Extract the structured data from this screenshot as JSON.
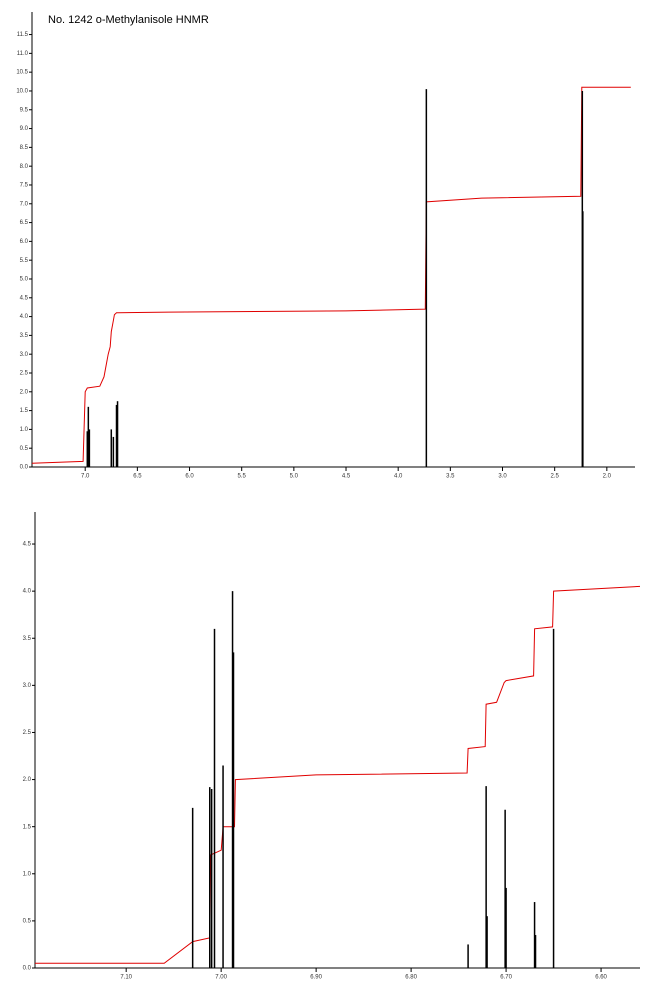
{
  "chart_data": [
    {
      "type": "spectrum",
      "title": "No. 1242 o-Methylanisole HNMR",
      "xlim": [
        7.51,
        1.73
      ],
      "xticks": [
        {
          "value": 7,
          "label": "7.0"
        },
        {
          "value": 6.5,
          "label": "6.5"
        },
        {
          "value": 6,
          "label": "6.0"
        },
        {
          "value": 5.5,
          "label": "5.5"
        },
        {
          "value": 5,
          "label": "5.0"
        },
        {
          "value": 4.5,
          "label": "4.5"
        },
        {
          "value": 4,
          "label": "4.0"
        },
        {
          "value": 3.5,
          "label": "3.5"
        },
        {
          "value": 3,
          "label": "3.0"
        },
        {
          "value": 2.5,
          "label": "2.5"
        },
        {
          "value": 2,
          "label": "2.0"
        }
      ],
      "ylim": [
        0,
        12.1
      ],
      "yticks": [
        {
          "value": 0,
          "label": "0.0"
        },
        0.5,
        {
          "value": 1,
          "label": "1.0"
        },
        1.5,
        {
          "value": 2,
          "label": "2.0"
        },
        2.5,
        {
          "value": 3,
          "label": "3.0"
        },
        3.5,
        {
          "value": 4,
          "label": "4.0"
        },
        4.5,
        {
          "value": 5,
          "label": "5.0"
        },
        5.5,
        {
          "value": 6,
          "label": "6.0"
        },
        6.5,
        {
          "value": 7,
          "label": "7.0"
        },
        7.5,
        {
          "value": 8,
          "label": "8.0"
        },
        8.5,
        {
          "value": 9,
          "label": "9.0"
        },
        9.5,
        {
          "value": 10,
          "label": "10.0"
        },
        10.5,
        {
          "value": 11,
          "label": "11.0"
        },
        11.5
      ],
      "peaks": {
        "color": "#000000",
        "x": [
          6.98,
          6.97,
          6.96,
          6.75,
          6.73,
          6.7,
          6.69,
          3.73,
          2.235,
          2.23
        ],
        "values": [
          0.95,
          1.6,
          1.0,
          1.0,
          0.8,
          1.65,
          1.75,
          10.05,
          10.0,
          6.8
        ]
      },
      "integral": {
        "color": "#e00000",
        "x": [
          7.51,
          7.02,
          7.0,
          6.98,
          6.86,
          6.82,
          6.8,
          6.78,
          6.76,
          6.75,
          6.73,
          6.72,
          6.7,
          6.68,
          6.2,
          4.5,
          3.74,
          3.73,
          3.2,
          2.25,
          2.24,
          1.77
        ],
        "values": [
          0.1,
          0.15,
          2.0,
          2.1,
          2.15,
          2.4,
          2.7,
          3.0,
          3.2,
          3.6,
          3.9,
          4.05,
          4.1,
          4.1,
          4.12,
          4.15,
          4.2,
          7.05,
          7.15,
          7.2,
          10.1,
          10.1
        ]
      }
    },
    {
      "type": "spectrum",
      "xlim": [
        7.196,
        6.559
      ],
      "xticks": [
        {
          "value": 7.1,
          "label": "7.10"
        },
        {
          "value": 7,
          "label": "7.00"
        },
        {
          "value": 6.9,
          "label": "6.90"
        },
        {
          "value": 6.8,
          "label": "6.80"
        },
        {
          "value": 6.7,
          "label": "6.70"
        },
        {
          "value": 6.6,
          "label": "6.60"
        }
      ],
      "ylim": [
        0,
        4.84
      ],
      "yticks": [
        {
          "value": 0,
          "label": "0.0"
        },
        0.5,
        {
          "value": 1,
          "label": "1.0"
        },
        1.5,
        {
          "value": 2,
          "label": "2.0"
        },
        2.5,
        {
          "value": 3,
          "label": "3.0"
        },
        3.5,
        {
          "value": 4,
          "label": "4.0"
        },
        4.5
      ],
      "peaks": {
        "color": "#000000",
        "x": [
          7.03,
          7.012,
          7.01,
          7.007,
          6.998,
          6.988,
          6.987,
          6.74,
          6.721,
          6.72,
          6.701,
          6.7,
          6.67,
          6.669,
          6.65
        ],
        "values": [
          1.7,
          1.92,
          1.9,
          3.6,
          2.15,
          4.0,
          3.35,
          0.25,
          1.93,
          0.55,
          1.68,
          0.85,
          0.7,
          0.35,
          3.6
        ]
      },
      "integral": {
        "color": "#e00000",
        "x": [
          7.196,
          7.06,
          7.03,
          7.012,
          7.011,
          7.0,
          6.998,
          6.986,
          6.985,
          6.9,
          6.741,
          6.74,
          6.722,
          6.721,
          6.71,
          6.702,
          6.7,
          6.671,
          6.67,
          6.651,
          6.65,
          6.559
        ],
        "values": [
          0.05,
          0.05,
          0.28,
          0.32,
          1.2,
          1.25,
          1.5,
          1.5,
          2.0,
          2.05,
          2.07,
          2.33,
          2.35,
          2.8,
          2.82,
          3.03,
          3.05,
          3.1,
          3.6,
          3.62,
          4.0,
          4.05
        ]
      }
    }
  ]
}
